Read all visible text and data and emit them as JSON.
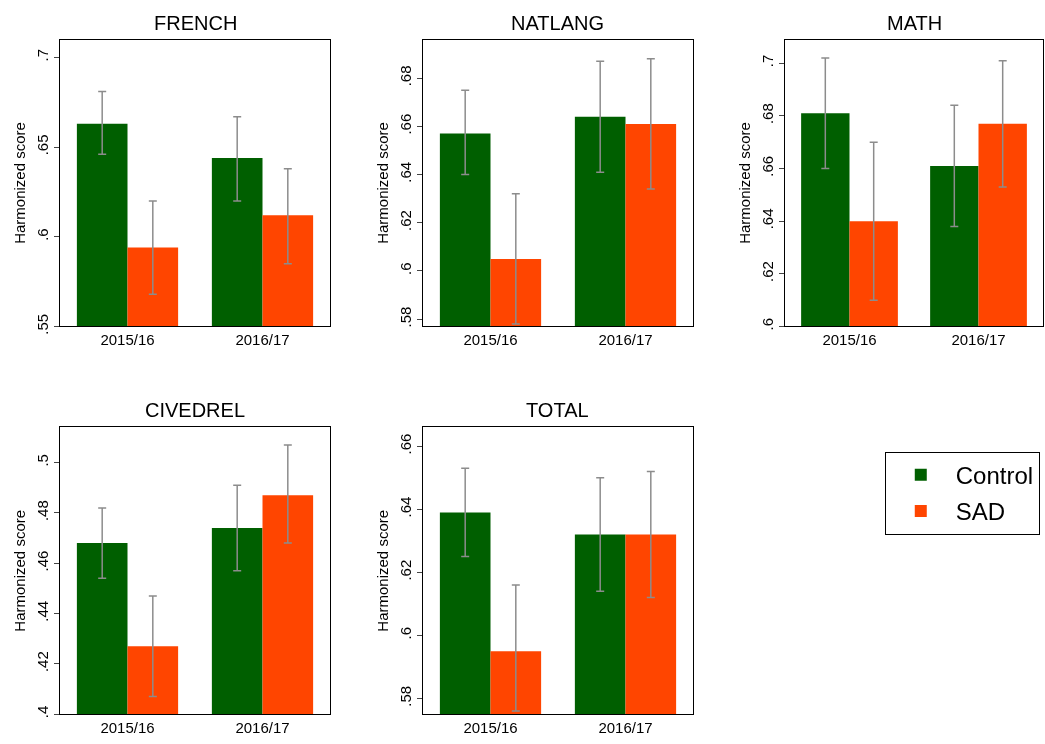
{
  "chart_data": [
    {
      "type": "bar",
      "title": "FRENCH",
      "ylabel": "Harmonized score",
      "categories": [
        "2015/16",
        "2016/17"
      ],
      "ylim": [
        0.55,
        0.71
      ],
      "yticks": [
        {
          "value": 0.55,
          "label": ".55"
        },
        {
          "value": 0.6,
          "label": ".6"
        },
        {
          "value": 0.65,
          "label": ".65"
        },
        {
          "value": 0.7,
          "label": ".7"
        }
      ],
      "legend": "bottom right",
      "series": [
        {
          "name": "Control",
          "color": "#005f00",
          "values": [
            0.663,
            0.644
          ],
          "errors": [
            [
              0.646,
              0.681
            ],
            [
              0.62,
              0.667
            ]
          ]
        },
        {
          "name": "SAD",
          "color": "#ff4500",
          "values": [
            0.594,
            0.612
          ],
          "errors": [
            [
              0.568,
              0.62
            ],
            [
              0.585,
              0.638
            ]
          ]
        }
      ]
    },
    {
      "type": "bar",
      "title": "NATLANG",
      "ylabel": "Harmonized score",
      "categories": [
        "2015/16",
        "2016/17"
      ],
      "ylim": [
        0.577,
        0.696
      ],
      "yticks": [
        {
          "value": 0.58,
          "label": ".58"
        },
        {
          "value": 0.6,
          "label": ".6"
        },
        {
          "value": 0.62,
          "label": ".62"
        },
        {
          "value": 0.64,
          "label": ".64"
        },
        {
          "value": 0.66,
          "label": ".66"
        },
        {
          "value": 0.68,
          "label": ".68"
        }
      ],
      "series": [
        {
          "color": "#005f00",
          "values": [
            0.657,
            0.664
          ],
          "errors": [
            [
              0.64,
              0.675
            ],
            [
              0.641,
              0.687
            ]
          ]
        },
        {
          "color": "#ff4500",
          "values": [
            0.605,
            0.661
          ],
          "errors": [
            [
              0.578,
              0.632
            ],
            [
              0.634,
              0.688
            ]
          ]
        }
      ]
    },
    {
      "type": "bar",
      "title": "MATH",
      "ylabel": "Harmonized score",
      "categories": [
        "2015/16",
        "2016/17"
      ],
      "ylim": [
        0.6,
        0.709
      ],
      "yticks": [
        {
          "value": 0.6,
          "label": ".6"
        },
        {
          "value": 0.62,
          "label": ".62"
        },
        {
          "value": 0.64,
          "label": ".64"
        },
        {
          "value": 0.66,
          "label": ".66"
        },
        {
          "value": 0.68,
          "label": ".68"
        },
        {
          "value": 0.7,
          "label": ".7"
        }
      ],
      "series": [
        {
          "color": "#005f00",
          "values": [
            0.681,
            0.661
          ],
          "errors": [
            [
              0.66,
              0.702
            ],
            [
              0.638,
              0.684
            ]
          ]
        },
        {
          "color": "#ff4500",
          "values": [
            0.64,
            0.677
          ],
          "errors": [
            [
              0.61,
              0.67
            ],
            [
              0.653,
              0.701
            ]
          ]
        }
      ]
    },
    {
      "type": "bar",
      "title": "CIVEDREL",
      "ylabel": "Harmonized score",
      "categories": [
        "2015/16",
        "2016/17"
      ],
      "ylim": [
        0.4,
        0.514
      ],
      "yticks": [
        {
          "value": 0.4,
          "label": ".4"
        },
        {
          "value": 0.42,
          "label": ".42"
        },
        {
          "value": 0.44,
          "label": ".44"
        },
        {
          "value": 0.46,
          "label": ".46"
        },
        {
          "value": 0.48,
          "label": ".48"
        },
        {
          "value": 0.5,
          "label": ".5"
        }
      ],
      "series": [
        {
          "color": "#005f00",
          "values": [
            0.468,
            0.474
          ],
          "errors": [
            [
              0.454,
              0.482
            ],
            [
              0.457,
              0.491
            ]
          ]
        },
        {
          "color": "#ff4500",
          "values": [
            0.427,
            0.487
          ],
          "errors": [
            [
              0.407,
              0.447
            ],
            [
              0.468,
              0.507
            ]
          ]
        }
      ]
    },
    {
      "type": "bar",
      "title": "TOTAL",
      "ylabel": "Harmonized score",
      "categories": [
        "2015/16",
        "2016/17"
      ],
      "ylim": [
        0.575,
        0.666
      ],
      "yticks": [
        {
          "value": 0.58,
          "label": ".58"
        },
        {
          "value": 0.6,
          "label": ".6"
        },
        {
          "value": 0.62,
          "label": ".62"
        },
        {
          "value": 0.64,
          "label": ".64"
        },
        {
          "value": 0.66,
          "label": ".66"
        }
      ],
      "series": [
        {
          "color": "#005f00",
          "values": [
            0.639,
            0.632
          ],
          "errors": [
            [
              0.625,
              0.653
            ],
            [
              0.614,
              0.65
            ]
          ]
        },
        {
          "color": "#ff4500",
          "values": [
            0.595,
            0.632
          ],
          "errors": [
            [
              0.576,
              0.616
            ],
            [
              0.612,
              0.652
            ]
          ]
        }
      ]
    }
  ]
}
